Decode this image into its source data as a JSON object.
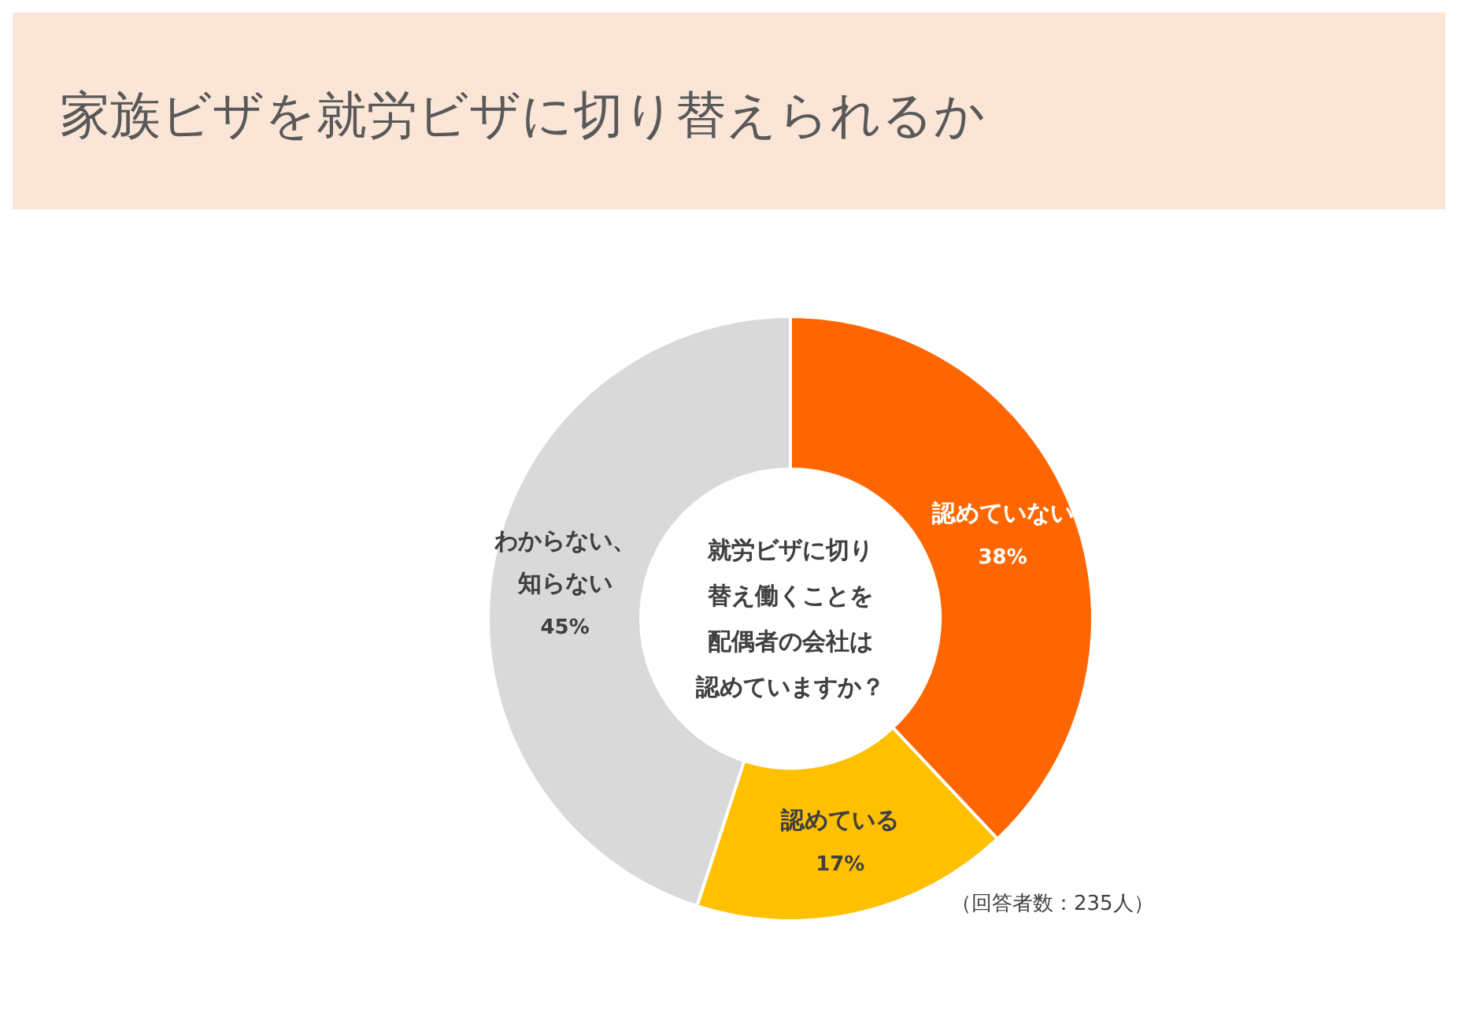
{
  "chart_data": {
    "type": "donut",
    "title": "家族ビザを就労ビザに切り替えられるか",
    "categories": [
      "認めていない",
      "認めている",
      "わからない、知らない"
    ],
    "values": [
      38,
      17,
      45
    ],
    "colors": [
      "#ff6600",
      "#ffc000",
      "#d9d9d9"
    ],
    "value_labels": [
      "38%",
      "17%",
      "45%"
    ],
    "annotations": [
      "就労ビザに切り替え働くことを配偶者の会社は認めていますか？",
      "（回答者数：235人）"
    ]
  }
}
